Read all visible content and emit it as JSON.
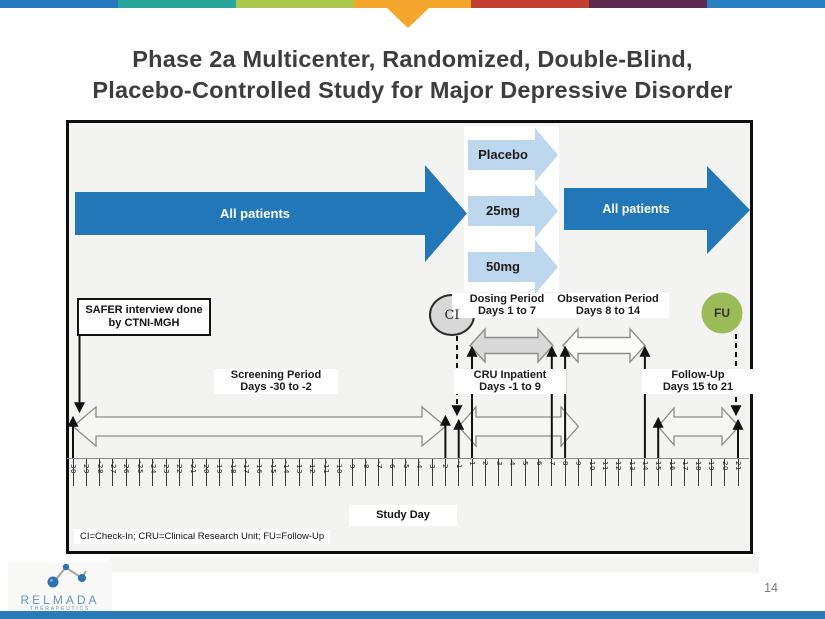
{
  "slide": {
    "title_line1": "Phase 2a Multicenter, Randomized, Double-Blind,",
    "title_line2": "Placebo-Controlled Study for Major Depressive Disorder",
    "page_number": "14"
  },
  "top_bar": {
    "segments": [
      "#2778bd",
      "#2aa59b",
      "#a9c84b",
      "#f3a52c",
      "#c43d33",
      "#5e2c4e",
      "#2b80c3"
    ],
    "marker_color": "#f3a52c"
  },
  "diagram": {
    "arrows": {
      "all_patients_left": "All patients",
      "all_patients_right": "All patients",
      "treatment_arms": [
        "Placebo",
        "25mg",
        "50mg"
      ]
    },
    "labels": {
      "safer_line1": "SAFER interview done",
      "safer_line2": "by CTNI-MGH",
      "screening_line1": "Screening Period",
      "screening_line2": "Days -30 to -2",
      "dosing_line1": "Dosing Period",
      "dosing_line2": "Days 1 to 7",
      "observation_line1": "Observation Period",
      "observation_line2": "Days 8 to 14",
      "cru_line1": "CRU Inpatient",
      "cru_line2": "Days -1 to 9",
      "followup_line1": "Follow-Up",
      "followup_line2": "Days 15 to 21",
      "check_in": "CI",
      "follow_up": "FU",
      "axis_title": "Study Day",
      "legend": "CI=Check-In; CRU=Clinical Research Unit; FU=Follow-Up"
    },
    "timeline": {
      "days": [
        -30,
        -29,
        -28,
        -27,
        -26,
        -25,
        -24,
        -23,
        -22,
        -21,
        -20,
        -19,
        -18,
        -17,
        -16,
        -15,
        -14,
        -13,
        -12,
        -11,
        -10,
        -9,
        -8,
        -7,
        -6,
        -5,
        -4,
        -3,
        -2,
        -1,
        1,
        2,
        3,
        4,
        5,
        6,
        7,
        8,
        9,
        10,
        11,
        12,
        13,
        14,
        15,
        16,
        17,
        18,
        19,
        20,
        21
      ]
    },
    "colors": {
      "primary_arrow": "#2277b8",
      "treatment_arrow": "#bdd7ee",
      "dosing_fill": "#d9d9d9",
      "ci_fill": "#d8d8d8",
      "fu_fill": "#9bbb59"
    }
  },
  "footer": {
    "bar_color": "#2b7ab8",
    "logo_name": "RELMADA",
    "logo_subtext": "THERAPEUTICS"
  }
}
